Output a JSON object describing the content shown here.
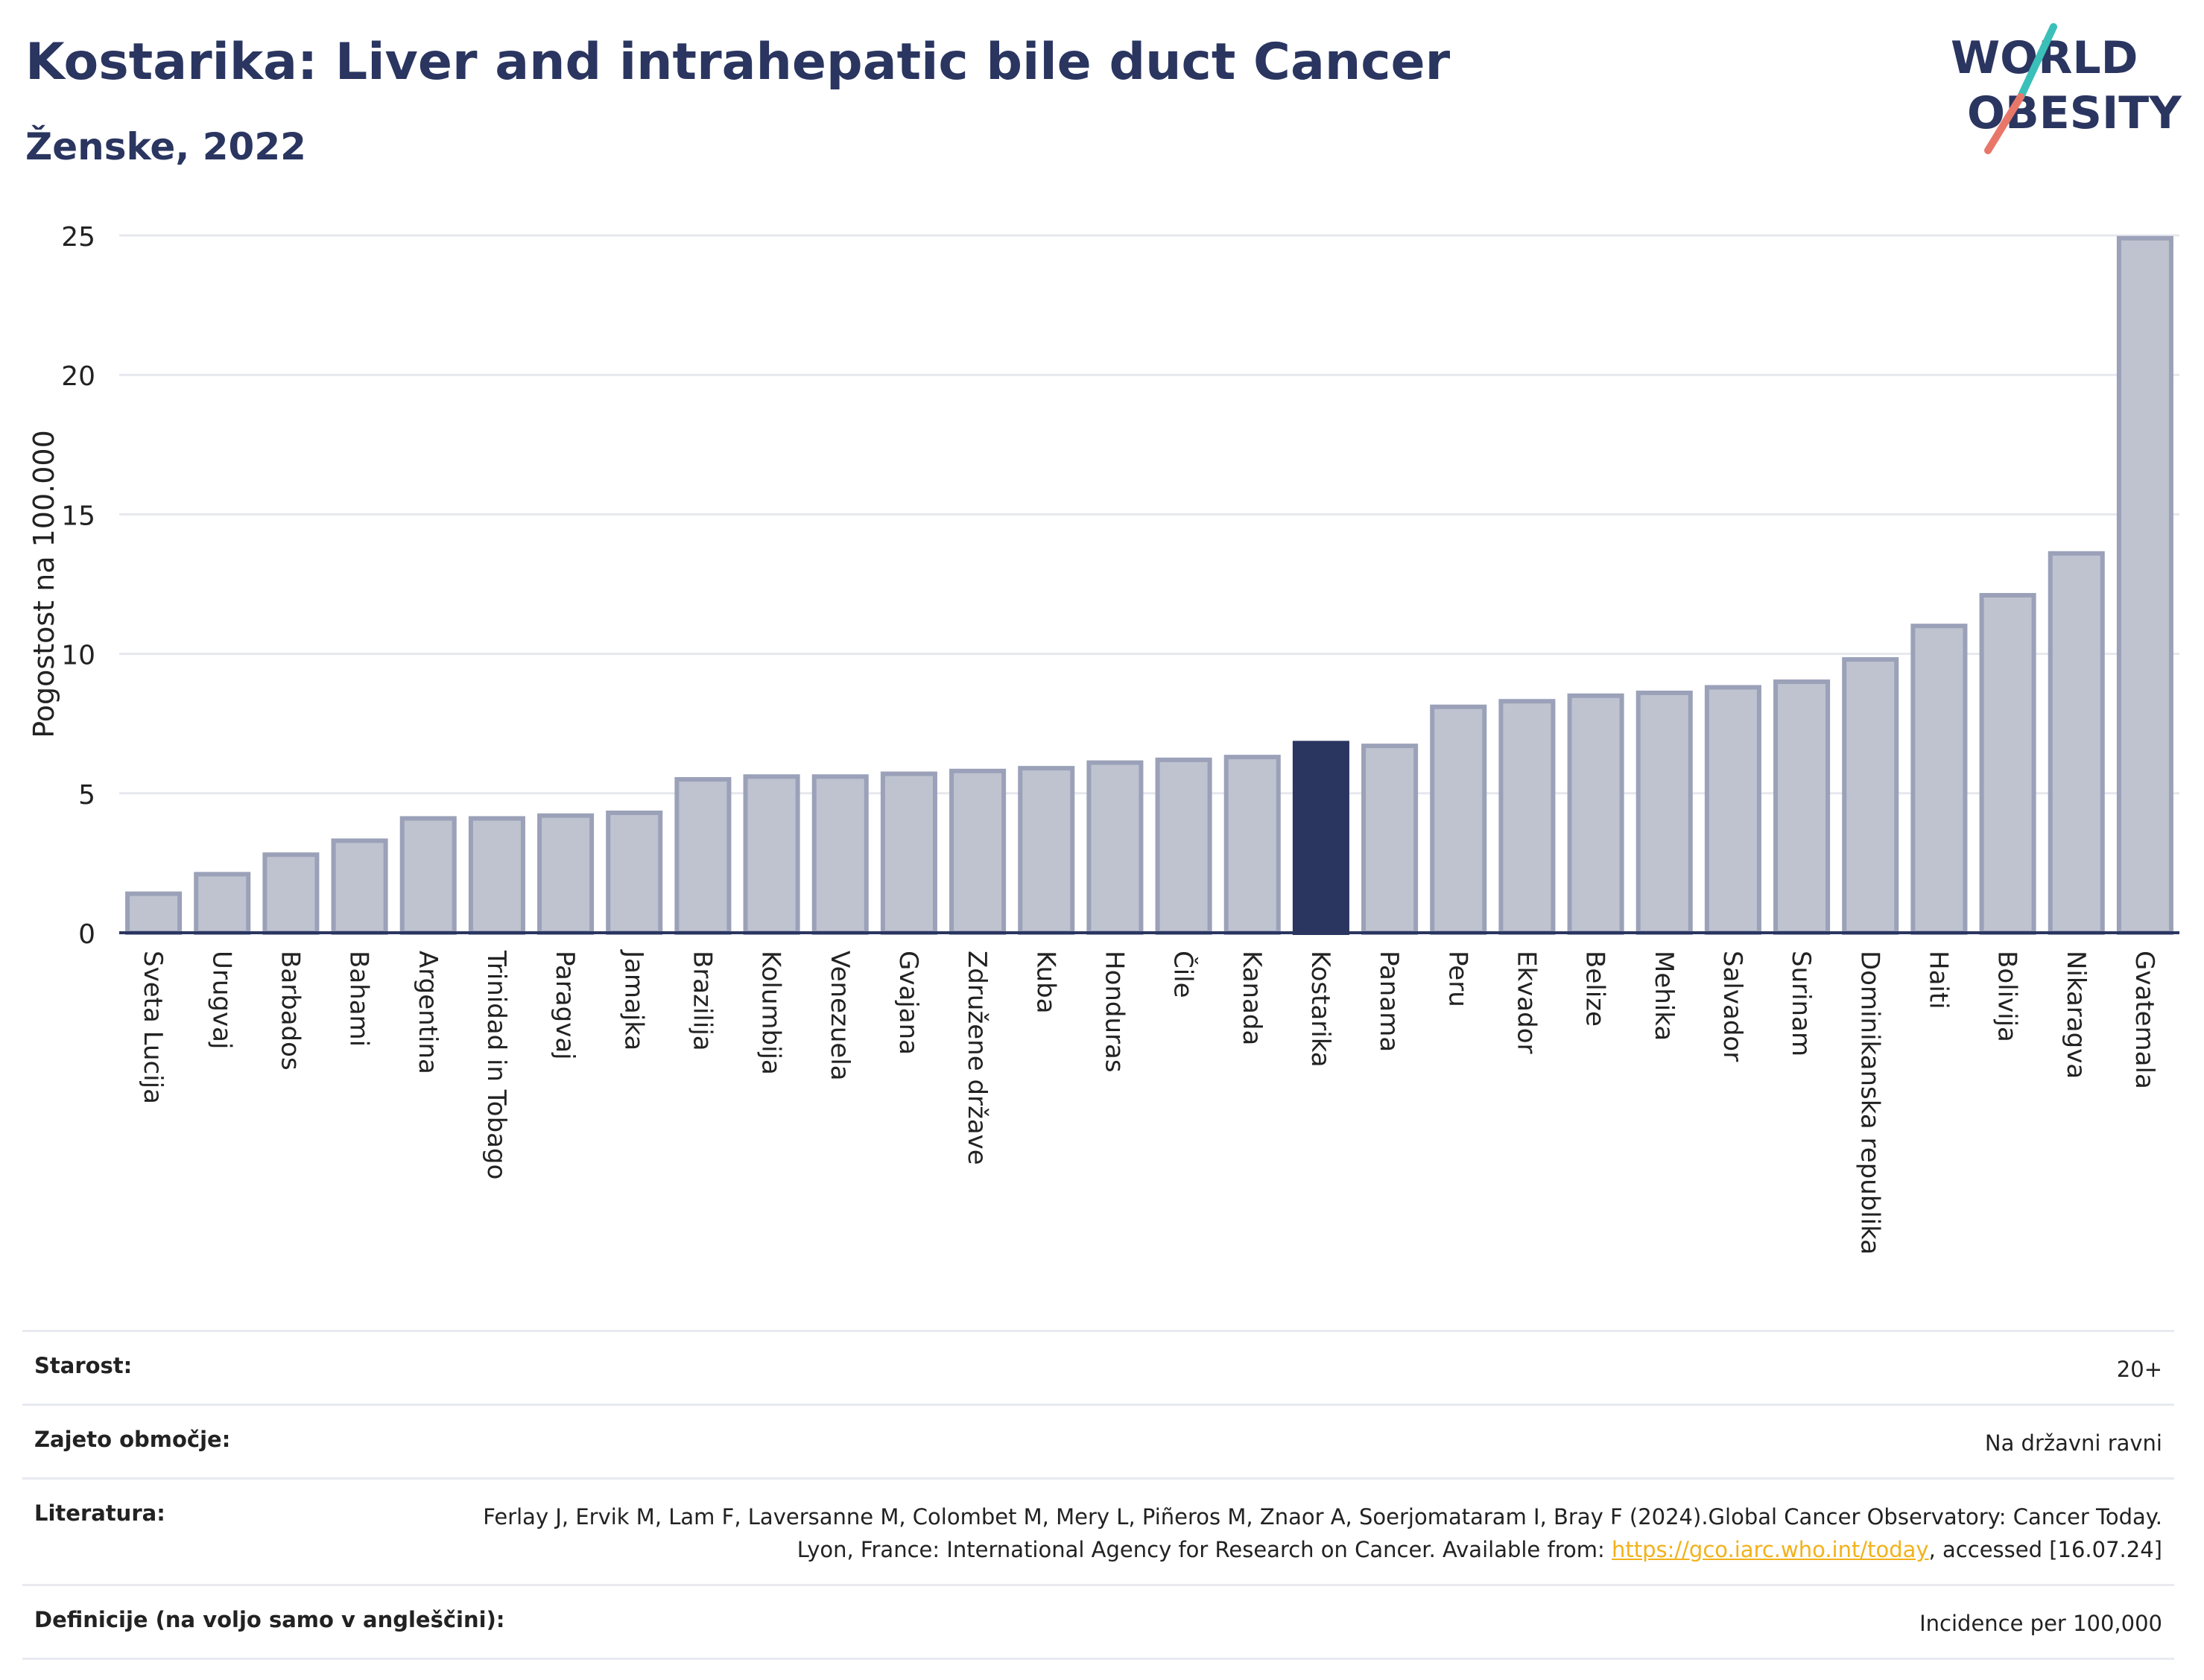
{
  "header": {
    "title": "Kostarika: Liver and intrahepatic bile duct Cancer",
    "subtitle": "Ženske, 2022"
  },
  "logo": {
    "line1": "WORLD",
    "line2": "OBESITY"
  },
  "colors": {
    "bar": "#bfc3d0",
    "bar_border": "#9aa1b8",
    "highlight": "#2a3560",
    "grid": "#e6e8ee",
    "axis": "#2a3560",
    "logo_teal": "#3bbfb9",
    "logo_coral": "#e8776a",
    "link": "#f2b21b"
  },
  "chart_data": {
    "type": "bar",
    "ylabel": "Pogostost na 100.000",
    "ylim": [
      0,
      25
    ],
    "yticks": [
      0,
      5,
      10,
      15,
      20,
      25
    ],
    "highlight": "Kostarika",
    "grid": true,
    "categories": [
      "Sveta Lucija",
      "Urugvaj",
      "Barbados",
      "Bahami",
      "Argentina",
      "Trinidad in Tobago",
      "Paragvaj",
      "Jamajka",
      "Brazilija",
      "Kolumbija",
      "Venezuela",
      "Gvajana",
      "Združene države",
      "Kuba",
      "Honduras",
      "Čile",
      "Kanada",
      "Kostarika",
      "Panama",
      "Peru",
      "Ekvador",
      "Belize",
      "Mehika",
      "Salvador",
      "Surinam",
      "Dominikanska republika",
      "Haiti",
      "Bolivija",
      "Nikaragva",
      "Gvatemala"
    ],
    "values": [
      1.4,
      2.1,
      2.8,
      3.3,
      4.1,
      4.1,
      4.2,
      4.3,
      5.5,
      5.6,
      5.6,
      5.7,
      5.8,
      5.9,
      6.1,
      6.2,
      6.3,
      6.8,
      6.7,
      8.1,
      8.3,
      8.5,
      8.6,
      8.8,
      9.0,
      9.8,
      11.0,
      12.1,
      13.6,
      24.9
    ]
  },
  "info": {
    "rows": [
      {
        "label": "Starost:",
        "value": "20+"
      },
      {
        "label": "Zajeto območje:",
        "value": "Na državni ravni"
      },
      {
        "label": "Literatura:",
        "value_pre": "Ferlay J, Ervik M, Lam F, Laversanne M, Colombet M, Mery L, Piñeros M, Znaor A, Soerjomataram I, Bray F (2024).Global Cancer Observatory: Cancer Today. Lyon, France: International Agency for Research on Cancer. Available from: ",
        "link": "https://gco.iarc.who.int/today",
        "value_post": ", accessed [16.07.24]"
      },
      {
        "label": "Definicije (na voljo samo v angleščini):",
        "value": "Incidence per 100,000"
      }
    ]
  }
}
